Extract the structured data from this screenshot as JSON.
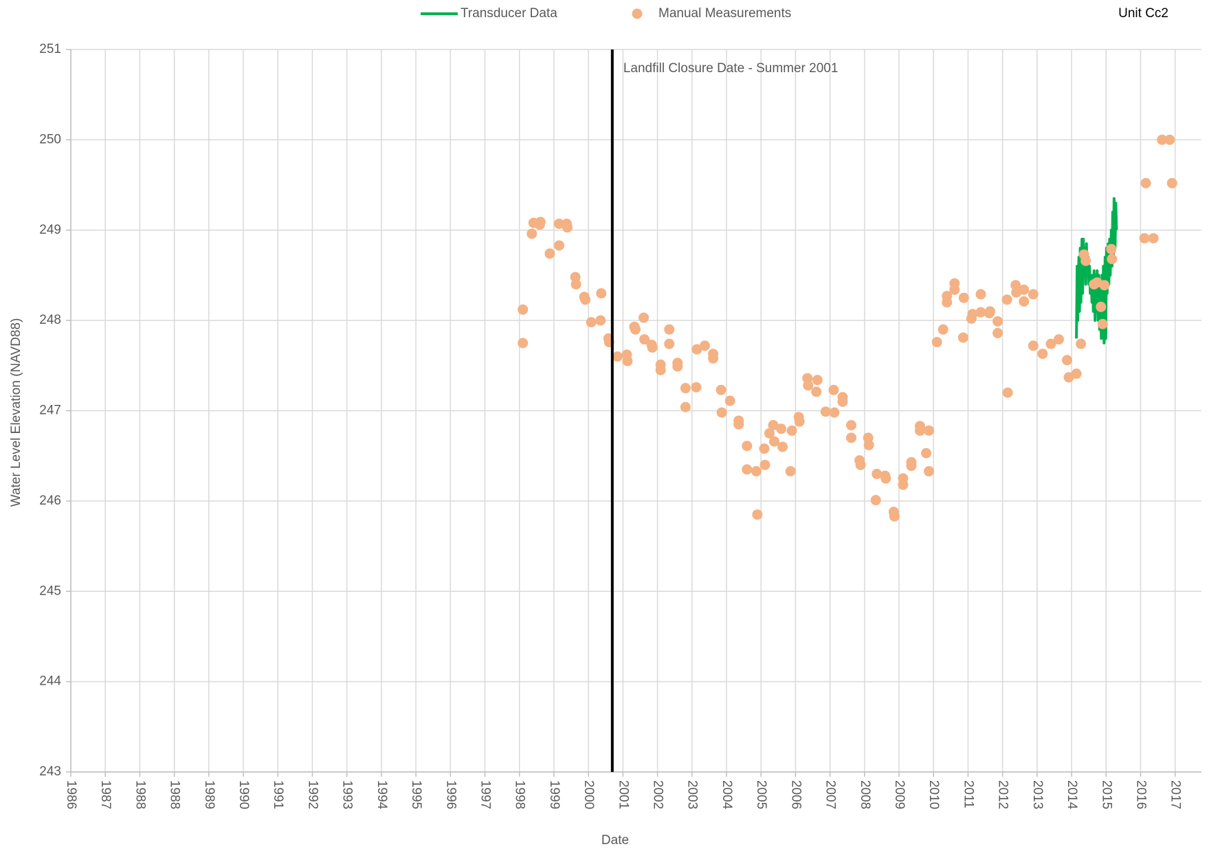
{
  "chart_data": {
    "type": "scatter",
    "title": "Unit Cc2",
    "x_label": "Date",
    "y_label": "Water Level Elevation (NAVD88)",
    "legend": "top",
    "grid": true,
    "xlim": [
      1986,
      2018.74
    ],
    "ylim": [
      243,
      251
    ],
    "yticks": [
      243,
      244,
      245,
      246,
      247,
      248,
      249,
      250,
      251
    ],
    "xticks": [
      {
        "value": 1986.0,
        "label": "1986"
      },
      {
        "value": 1986.999,
        "label": "1987"
      },
      {
        "value": 1987.999,
        "label": "1988"
      },
      {
        "value": 1988.998,
        "label": "1988"
      },
      {
        "value": 1989.997,
        "label": "1989"
      },
      {
        "value": 1990.997,
        "label": "1990"
      },
      {
        "value": 1991.996,
        "label": "1991"
      },
      {
        "value": 1992.995,
        "label": "1992"
      },
      {
        "value": 1993.994,
        "label": "1993"
      },
      {
        "value": 1994.994,
        "label": "1994"
      },
      {
        "value": 1995.993,
        "label": "1995"
      },
      {
        "value": 1996.992,
        "label": "1996"
      },
      {
        "value": 1997.992,
        "label": "1997"
      },
      {
        "value": 1998.991,
        "label": "1998"
      },
      {
        "value": 1999.99,
        "label": "1999"
      },
      {
        "value": 2000.99,
        "label": "2000"
      },
      {
        "value": 2001.989,
        "label": "2001"
      },
      {
        "value": 2002.988,
        "label": "2002"
      },
      {
        "value": 2003.987,
        "label": "2003"
      },
      {
        "value": 2004.987,
        "label": "2004"
      },
      {
        "value": 2005.986,
        "label": "2005"
      },
      {
        "value": 2006.985,
        "label": "2006"
      },
      {
        "value": 2007.985,
        "label": "2007"
      },
      {
        "value": 2008.984,
        "label": "2008"
      },
      {
        "value": 2009.983,
        "label": "2009"
      },
      {
        "value": 2010.983,
        "label": "2010"
      },
      {
        "value": 2011.982,
        "label": "2011"
      },
      {
        "value": 2012.981,
        "label": "2012"
      },
      {
        "value": 2013.98,
        "label": "2013"
      },
      {
        "value": 2014.98,
        "label": "2014"
      },
      {
        "value": 2015.979,
        "label": "2015"
      },
      {
        "value": 2016.978,
        "label": "2016"
      },
      {
        "value": 2017.978,
        "label": "2017"
      }
    ],
    "annotation": {
      "x": 2001.68,
      "text": "Landfill Closure Date - Summer 2001",
      "color": "#000000"
    },
    "series": [
      {
        "name": "Transducer Data",
        "mode": "line",
        "color": "#00b050",
        "x": [
          2015.12,
          2015.14,
          2015.16,
          2015.19,
          2015.21,
          2015.23,
          2015.25,
          2015.28,
          2015.3,
          2015.32,
          2015.34,
          2015.37,
          2015.39,
          2015.41,
          2015.43,
          2015.46,
          2015.48,
          2015.5,
          2015.52,
          2015.54,
          2015.57,
          2015.59,
          2015.61,
          2015.63,
          2015.66,
          2015.68,
          2015.7,
          2015.72,
          2015.75,
          2015.77,
          2015.79,
          2015.81,
          2015.84,
          2015.86,
          2015.88,
          2015.9,
          2015.92,
          2015.95,
          2015.97,
          2015.99,
          2016.01,
          2016.04,
          2016.06,
          2016.08,
          2016.1,
          2016.13,
          2016.15,
          2016.17,
          2016.19,
          2016.21,
          2016.24,
          2016.26,
          2016.28
        ],
        "values": [
          247.8,
          248.6,
          248.0,
          248.7,
          248.1,
          248.8,
          248.2,
          248.9,
          248.3,
          248.9,
          248.5,
          248.8,
          248.4,
          248.85,
          248.5,
          248.7,
          248.4,
          248.6,
          248.3,
          248.5,
          248.2,
          248.5,
          248.1,
          248.55,
          248.0,
          248.5,
          248.1,
          248.55,
          248.0,
          248.5,
          247.9,
          248.3,
          247.8,
          248.5,
          247.9,
          248.6,
          247.75,
          248.7,
          247.8,
          248.8,
          248.3,
          248.85,
          248.4,
          248.9,
          248.5,
          249.0,
          248.6,
          249.2,
          248.7,
          249.35,
          248.8,
          249.3,
          249.0
        ]
      },
      {
        "name": "Manual Measurements",
        "mode": "markers",
        "color": "#f4b183",
        "x": [
          1999.09,
          1999.09,
          1999.35,
          1999.4,
          1999.58,
          1999.6,
          1999.87,
          2000.14,
          2000.14,
          2000.36,
          2000.38,
          2000.61,
          2000.63,
          2000.87,
          2000.9,
          2001.07,
          2001.34,
          2001.36,
          2001.57,
          2001.59,
          2001.83,
          2002.1,
          2002.12,
          2002.32,
          2002.35,
          2002.59,
          2002.61,
          2002.82,
          2002.84,
          2003.08,
          2003.08,
          2003.33,
          2003.33,
          2003.57,
          2003.57,
          2003.8,
          2003.8,
          2004.11,
          2004.13,
          2004.36,
          2004.6,
          2004.6,
          2004.83,
          2004.85,
          2005.09,
          2005.34,
          2005.34,
          2005.58,
          2005.58,
          2005.85,
          2005.88,
          2006.08,
          2006.1,
          2006.23,
          2006.34,
          2006.37,
          2006.57,
          2006.61,
          2006.84,
          2006.88,
          2007.08,
          2007.1,
          2007.33,
          2007.35,
          2007.62,
          2007.59,
          2007.86,
          2008.11,
          2008.09,
          2008.35,
          2008.35,
          2008.6,
          2008.6,
          2008.84,
          2008.87,
          2009.09,
          2009.11,
          2009.31,
          2009.34,
          2009.58,
          2009.6,
          2009.83,
          2009.85,
          2010.1,
          2010.1,
          2010.34,
          2010.34,
          2010.59,
          2010.59,
          2010.77,
          2010.85,
          2010.85,
          2011.08,
          2011.26,
          2011.37,
          2011.37,
          2011.59,
          2011.59,
          2011.84,
          2011.86,
          2012.08,
          2012.11,
          2012.35,
          2012.35,
          2012.6,
          2012.62,
          2012.84,
          2012.84,
          2013.11,
          2013.13,
          2013.36,
          2013.38,
          2013.6,
          2013.6,
          2013.87,
          2013.87,
          2014.14,
          2014.38,
          2014.61,
          2014.85,
          2014.9,
          2015.12,
          2015.25,
          2015.34,
          2015.39,
          2015.63,
          2015.72,
          2015.83,
          2015.88,
          2015.93,
          2016.13,
          2016.15,
          2017.09,
          2017.13,
          2017.35,
          2017.6,
          2017.82,
          2017.89
        ],
        "values": [
          248.12,
          247.75,
          248.96,
          249.08,
          249.06,
          249.09,
          248.74,
          249.07,
          248.83,
          249.07,
          249.03,
          248.48,
          248.4,
          248.26,
          248.23,
          247.98,
          248.0,
          248.3,
          247.8,
          247.76,
          247.6,
          247.62,
          247.55,
          247.93,
          247.9,
          248.03,
          247.79,
          247.73,
          247.7,
          247.51,
          247.45,
          247.9,
          247.74,
          247.53,
          247.49,
          247.25,
          247.04,
          247.26,
          247.68,
          247.72,
          247.63,
          247.58,
          247.23,
          246.98,
          247.11,
          246.89,
          246.85,
          246.61,
          246.35,
          246.33,
          245.85,
          246.58,
          246.4,
          246.75,
          246.84,
          246.66,
          246.8,
          246.6,
          246.33,
          246.78,
          246.93,
          246.88,
          247.36,
          247.28,
          247.34,
          247.21,
          246.99,
          246.98,
          247.23,
          247.15,
          247.1,
          246.84,
          246.7,
          246.45,
          246.4,
          246.7,
          246.62,
          246.01,
          246.3,
          246.28,
          246.25,
          245.88,
          245.83,
          246.25,
          246.18,
          246.43,
          246.39,
          246.83,
          246.78,
          246.53,
          246.78,
          246.33,
          247.76,
          247.9,
          248.27,
          248.2,
          248.41,
          248.34,
          247.81,
          248.25,
          248.02,
          248.07,
          248.29,
          248.09,
          248.08,
          248.1,
          247.99,
          247.86,
          248.23,
          247.2,
          248.39,
          248.31,
          248.34,
          248.21,
          248.29,
          247.72,
          247.63,
          247.74,
          247.79,
          247.56,
          247.37,
          247.41,
          247.74,
          248.73,
          248.66,
          248.4,
          248.42,
          248.15,
          247.96,
          248.39,
          248.79,
          248.68,
          248.91,
          249.52,
          248.91,
          250.0,
          250.0,
          249.52
        ]
      }
    ]
  }
}
